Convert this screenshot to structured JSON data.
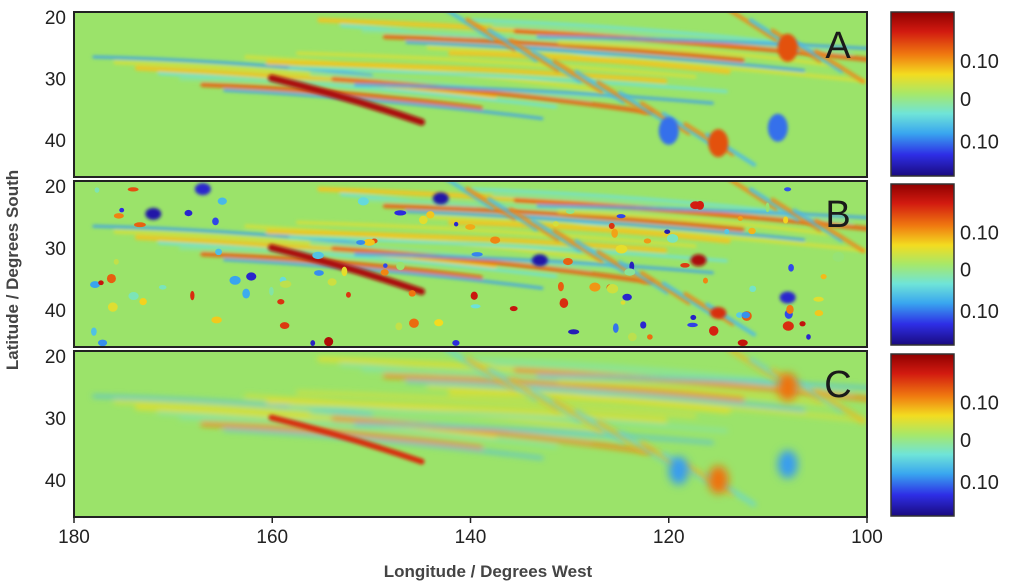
{
  "chart_data": {
    "type": "heatmap",
    "xlabel": "Longitude / Degrees West",
    "ylabel": "Latitude / Degrees South",
    "x_ticks": [
      180,
      160,
      140,
      120,
      100
    ],
    "xlim": [
      180,
      100
    ],
    "y_ticks": [
      20,
      30,
      40
    ],
    "ylim": [
      20,
      46
    ],
    "colormap": "jet",
    "colors": {
      "background": "#9be36a",
      "red": "#9c0a0a",
      "blue": "#1a0a90"
    },
    "colorbar_labels": [
      "0.10",
      "0",
      "0.10"
    ],
    "panels": [
      {
        "label": "A",
        "features": [
          {
            "kind": "streak",
            "lon": 152,
            "lat": 33.5,
            "value": 0.18
          },
          {
            "kind": "blob",
            "lon": 115,
            "lat": 40.5,
            "value": 0.12
          },
          {
            "kind": "blob",
            "lon": 108,
            "lat": 25,
            "value": 0.12
          },
          {
            "kind": "blob",
            "lon": 120,
            "lat": 38.5,
            "value": -0.12
          },
          {
            "kind": "blob",
            "lon": 109,
            "lat": 38,
            "value": -0.12
          }
        ]
      },
      {
        "label": "B",
        "features": [
          {
            "kind": "streak",
            "lon": 152,
            "lat": 33.5,
            "value": 0.18
          },
          {
            "kind": "blob",
            "lon": 172,
            "lat": 24.5,
            "value": -0.18
          },
          {
            "kind": "blob",
            "lon": 167,
            "lat": 20.5,
            "value": -0.16
          },
          {
            "kind": "blob",
            "lon": 143,
            "lat": 22,
            "value": -0.18
          },
          {
            "kind": "blob",
            "lon": 133,
            "lat": 32,
            "value": -0.18
          },
          {
            "kind": "blob",
            "lon": 117,
            "lat": 32,
            "value": 0.18
          },
          {
            "kind": "blob",
            "lon": 115,
            "lat": 40.5,
            "value": 0.14
          },
          {
            "kind": "blob",
            "lon": 108,
            "lat": 38,
            "value": -0.16
          }
        ]
      },
      {
        "label": "C",
        "features": [
          {
            "kind": "streak",
            "lon": 152,
            "lat": 33.5,
            "value": 0.14
          },
          {
            "kind": "blob",
            "lon": 115,
            "lat": 40,
            "value": 0.1
          },
          {
            "kind": "blob",
            "lon": 108,
            "lat": 25,
            "value": 0.1
          },
          {
            "kind": "blob",
            "lon": 119,
            "lat": 38.5,
            "value": -0.1
          },
          {
            "kind": "blob",
            "lon": 108,
            "lat": 37.5,
            "value": -0.1
          }
        ]
      }
    ]
  }
}
